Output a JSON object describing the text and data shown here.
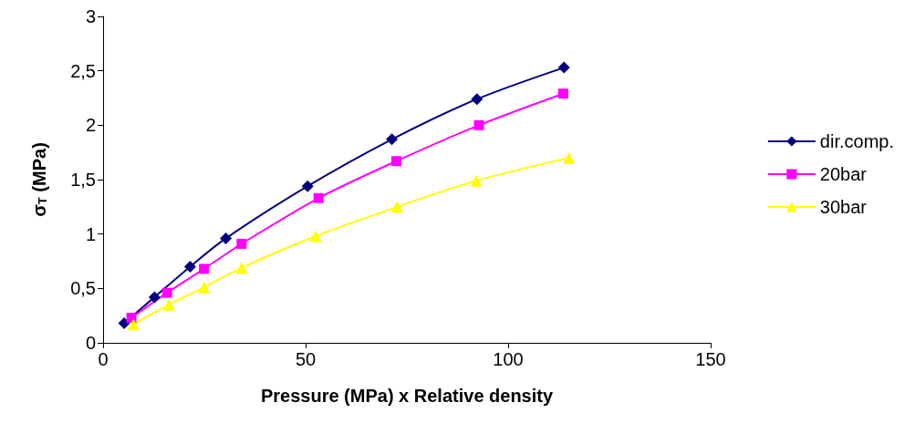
{
  "chart_data": {
    "type": "line",
    "xlabel": "Pressure (MPa) x Relative density",
    "ylabel": "σ$_{T}$ (MPa)",
    "xlim": [
      0,
      150
    ],
    "xticks": [
      0,
      50,
      100,
      150
    ],
    "ylim": [
      0,
      3
    ],
    "yticks": [
      0,
      {
        "value": 0.5,
        "label": "0,5"
      },
      1,
      {
        "value": 1.5,
        "label": "1,5"
      },
      2,
      {
        "value": 2.5,
        "label": "2,5"
      },
      3
    ],
    "grid": false,
    "legend": "right",
    "line_style": "solid",
    "series": [
      {
        "name": "dir.comp.",
        "color": "#000080",
        "marker": "diamond",
        "x": [
          5.2,
          12.7,
          21.5,
          30.3,
          50.5,
          71.3,
          92.3,
          113.8
        ],
        "values": [
          0.18,
          0.42,
          0.7,
          0.96,
          1.44,
          1.87,
          2.24,
          2.53
        ]
      },
      {
        "name": "20bar",
        "color": "#ff00ff",
        "marker": "square",
        "x": [
          7,
          15.8,
          24.9,
          34.2,
          53.2,
          72.4,
          92.8,
          113.6
        ],
        "values": [
          0.23,
          0.46,
          0.68,
          0.91,
          1.33,
          1.67,
          2,
          2.29
        ]
      },
      {
        "name": "30bar",
        "color": "#ffff00",
        "marker": "triangle",
        "x": [
          7.5,
          16.3,
          24.9,
          34.2,
          52.5,
          72.6,
          92.1,
          115
        ],
        "values": [
          0.17,
          0.35,
          0.51,
          0.69,
          0.98,
          1.25,
          1.49,
          1.7
        ]
      }
    ]
  }
}
